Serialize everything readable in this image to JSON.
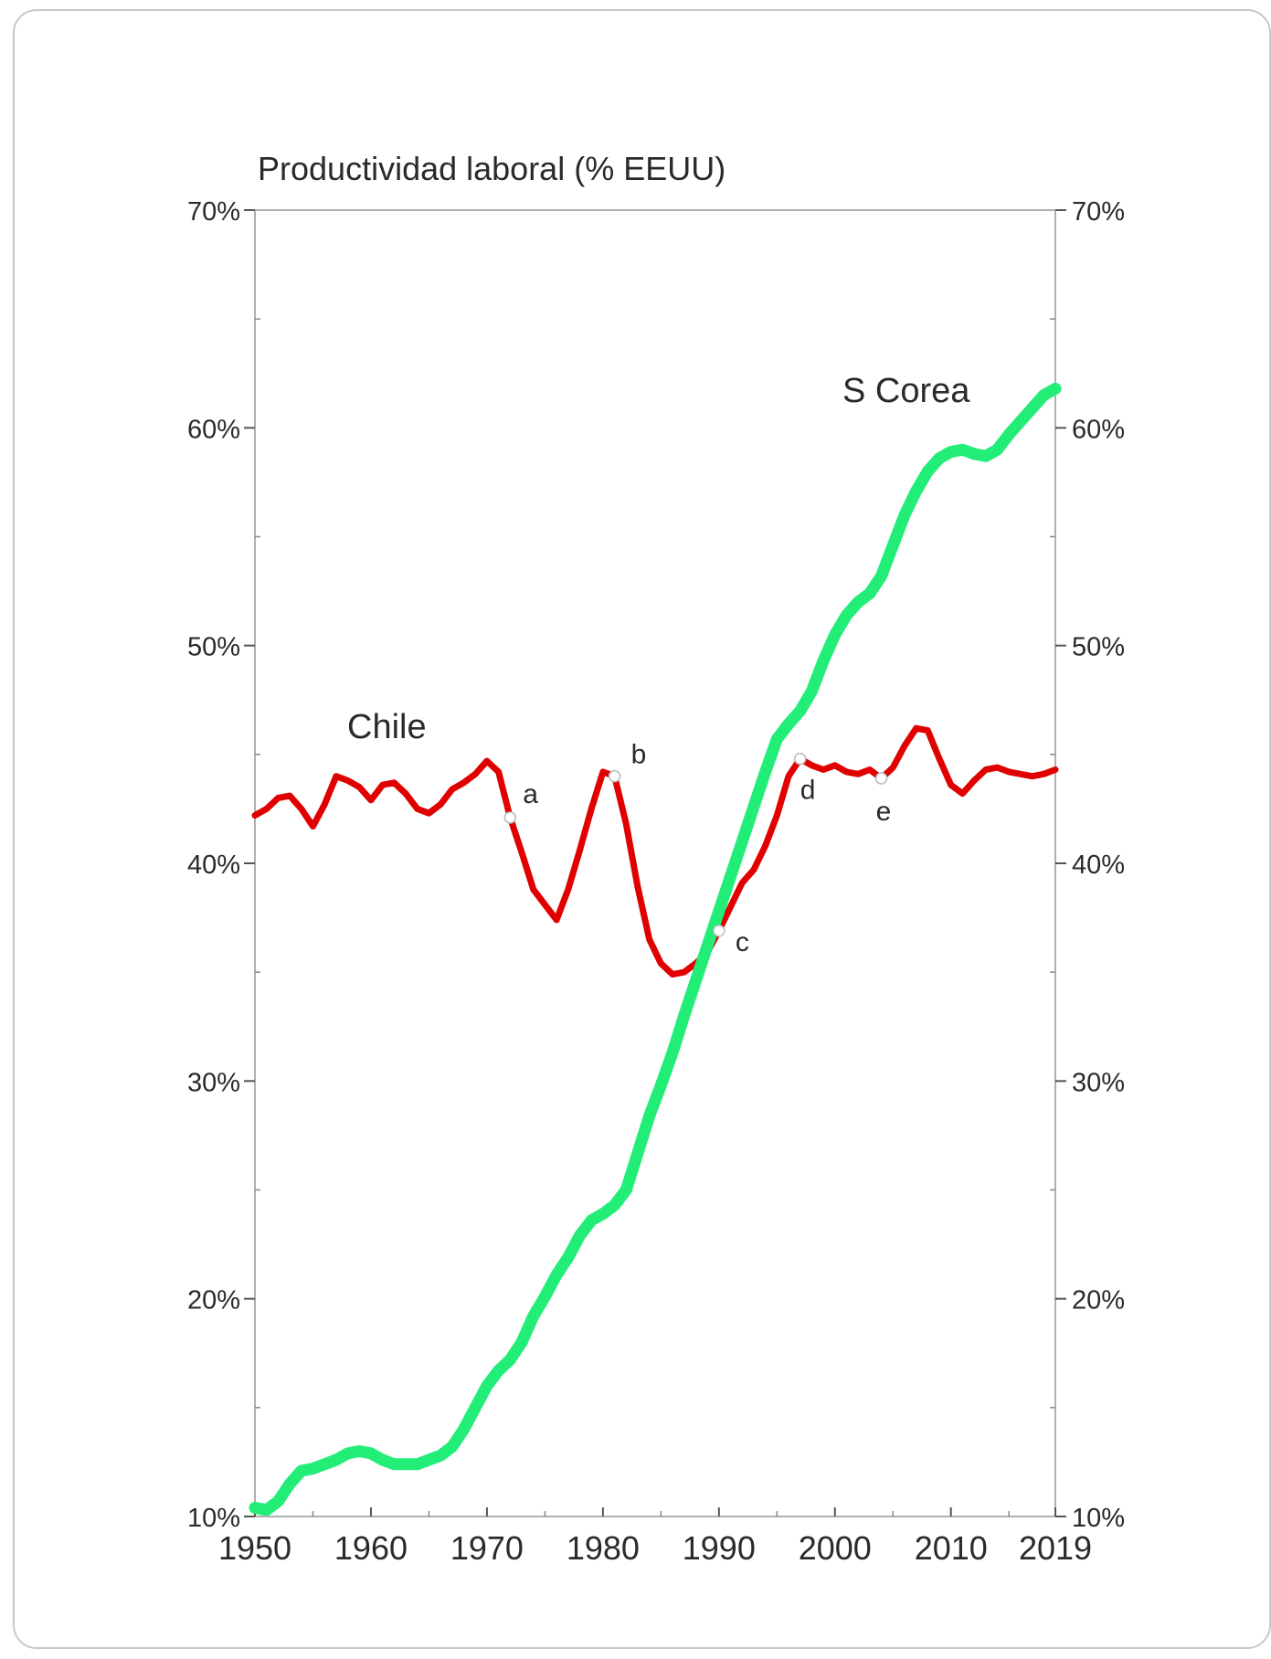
{
  "chart_data": {
    "type": "line",
    "title": "Productividad laboral (% EEUU)",
    "xlabel": "",
    "ylabel": "",
    "xlim": [
      1950,
      2019
    ],
    "ylim": [
      10,
      70
    ],
    "x_ticks": [
      "1950",
      "1960",
      "1970",
      "1980",
      "1990",
      "2000",
      "2010",
      "2019"
    ],
    "y_ticks": [
      "10%",
      "20%",
      "30%",
      "40%",
      "50%",
      "60%",
      "70%"
    ],
    "y_ticks_right": [
      "10%",
      "20%",
      "30%",
      "40%",
      "50%",
      "60%",
      "70%"
    ],
    "grid": false,
    "series": [
      {
        "name": "Chile",
        "color": "#e00000",
        "points": [
          [
            1950,
            42.2
          ],
          [
            1951,
            42.5
          ],
          [
            1952,
            43.0
          ],
          [
            1953,
            43.1
          ],
          [
            1954,
            42.5
          ],
          [
            1955,
            41.7
          ],
          [
            1956,
            42.7
          ],
          [
            1957,
            44.0
          ],
          [
            1958,
            43.8
          ],
          [
            1959,
            43.5
          ],
          [
            1960,
            42.9
          ],
          [
            1961,
            43.6
          ],
          [
            1962,
            43.7
          ],
          [
            1963,
            43.2
          ],
          [
            1964,
            42.5
          ],
          [
            1965,
            42.3
          ],
          [
            1966,
            42.7
          ],
          [
            1967,
            43.4
          ],
          [
            1968,
            43.7
          ],
          [
            1969,
            44.1
          ],
          [
            1970,
            44.7
          ],
          [
            1971,
            44.2
          ],
          [
            1972,
            42.1
          ],
          [
            1973,
            40.5
          ],
          [
            1974,
            38.8
          ],
          [
            1975,
            38.1
          ],
          [
            1976,
            37.4
          ],
          [
            1977,
            38.8
          ],
          [
            1978,
            40.6
          ],
          [
            1979,
            42.5
          ],
          [
            1980,
            44.2
          ],
          [
            1981,
            44.0
          ],
          [
            1982,
            41.8
          ],
          [
            1983,
            38.9
          ],
          [
            1984,
            36.5
          ],
          [
            1985,
            35.4
          ],
          [
            1986,
            34.9
          ],
          [
            1987,
            35.0
          ],
          [
            1988,
            35.4
          ],
          [
            1989,
            35.9
          ],
          [
            1990,
            36.9
          ],
          [
            1991,
            38.0
          ],
          [
            1992,
            39.1
          ],
          [
            1993,
            39.7
          ],
          [
            1994,
            40.8
          ],
          [
            1995,
            42.2
          ],
          [
            1996,
            44.0
          ],
          [
            1997,
            44.8
          ],
          [
            1998,
            44.5
          ],
          [
            1999,
            44.3
          ],
          [
            2000,
            44.5
          ],
          [
            2001,
            44.2
          ],
          [
            2002,
            44.1
          ],
          [
            2003,
            44.3
          ],
          [
            2004,
            43.9
          ],
          [
            2005,
            44.4
          ],
          [
            2006,
            45.4
          ],
          [
            2007,
            46.2
          ],
          [
            2008,
            46.1
          ],
          [
            2009,
            44.8
          ],
          [
            2010,
            43.6
          ],
          [
            2011,
            43.2
          ],
          [
            2012,
            43.8
          ],
          [
            2013,
            44.3
          ],
          [
            2014,
            44.4
          ],
          [
            2015,
            44.2
          ],
          [
            2016,
            44.1
          ],
          [
            2017,
            44.0
          ],
          [
            2018,
            44.1
          ],
          [
            2019,
            44.3
          ]
        ]
      },
      {
        "name": "S Corea",
        "color": "#22ee77",
        "points": [
          [
            1950,
            10.4
          ],
          [
            1951,
            10.3
          ],
          [
            1952,
            10.7
          ],
          [
            1953,
            11.5
          ],
          [
            1954,
            12.1
          ],
          [
            1955,
            12.2
          ],
          [
            1956,
            12.4
          ],
          [
            1957,
            12.6
          ],
          [
            1958,
            12.9
          ],
          [
            1959,
            13.0
          ],
          [
            1960,
            12.9
          ],
          [
            1961,
            12.6
          ],
          [
            1962,
            12.4
          ],
          [
            1963,
            12.4
          ],
          [
            1964,
            12.4
          ],
          [
            1965,
            12.6
          ],
          [
            1966,
            12.8
          ],
          [
            1967,
            13.2
          ],
          [
            1968,
            14.0
          ],
          [
            1969,
            15.0
          ],
          [
            1970,
            16.0
          ],
          [
            1971,
            16.7
          ],
          [
            1972,
            17.2
          ],
          [
            1973,
            18.0
          ],
          [
            1974,
            19.2
          ],
          [
            1975,
            20.1
          ],
          [
            1976,
            21.1
          ],
          [
            1977,
            21.9
          ],
          [
            1978,
            22.9
          ],
          [
            1979,
            23.6
          ],
          [
            1980,
            23.9
          ],
          [
            1981,
            24.3
          ],
          [
            1982,
            25.0
          ],
          [
            1983,
            26.7
          ],
          [
            1984,
            28.4
          ],
          [
            1985,
            29.8
          ],
          [
            1986,
            31.3
          ],
          [
            1987,
            33.0
          ],
          [
            1988,
            34.6
          ],
          [
            1989,
            36.2
          ],
          [
            1990,
            37.8
          ],
          [
            1991,
            39.4
          ],
          [
            1992,
            41.0
          ],
          [
            1993,
            42.6
          ],
          [
            1994,
            44.2
          ],
          [
            1995,
            45.7
          ],
          [
            1996,
            46.4
          ],
          [
            1997,
            47.0
          ],
          [
            1998,
            47.9
          ],
          [
            1999,
            49.3
          ],
          [
            2000,
            50.5
          ],
          [
            2001,
            51.4
          ],
          [
            2002,
            52.0
          ],
          [
            2003,
            52.4
          ],
          [
            2004,
            53.2
          ],
          [
            2005,
            54.6
          ],
          [
            2006,
            56.0
          ],
          [
            2007,
            57.1
          ],
          [
            2008,
            58.0
          ],
          [
            2009,
            58.6
          ],
          [
            2010,
            58.9
          ],
          [
            2011,
            59.0
          ],
          [
            2012,
            58.8
          ],
          [
            2013,
            58.7
          ],
          [
            2014,
            59.0
          ],
          [
            2015,
            59.7
          ],
          [
            2016,
            60.3
          ],
          [
            2017,
            60.9
          ],
          [
            2018,
            61.5
          ],
          [
            2019,
            61.8
          ]
        ]
      }
    ],
    "annotations": [
      {
        "label": "a",
        "x": 1972,
        "y": 42.1
      },
      {
        "label": "b",
        "x": 1981,
        "y": 44.0
      },
      {
        "label": "c",
        "x": 1990,
        "y": 36.9
      },
      {
        "label": "d",
        "x": 1997,
        "y": 44.8
      },
      {
        "label": "e",
        "x": 2004,
        "y": 43.9
      }
    ],
    "label_chile": "Chile",
    "label_korea": "S Corea"
  }
}
